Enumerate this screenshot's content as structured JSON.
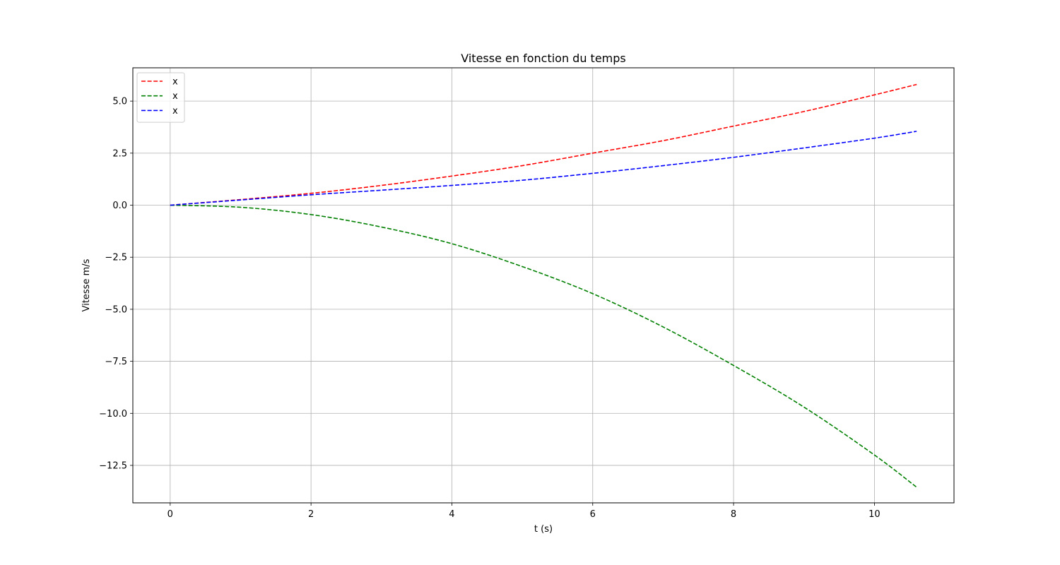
{
  "chart_data": {
    "type": "line",
    "title": "Vitesse en fonction du temps",
    "xlabel": "t (s)",
    "ylabel": "Vitesse m/s",
    "xlim": [
      -0.53,
      11.13
    ],
    "ylim": [
      -14.3,
      6.6
    ],
    "xticks": [
      0,
      2,
      4,
      6,
      8,
      10
    ],
    "yticks": [
      -12.5,
      -10.0,
      -7.5,
      -5.0,
      -2.5,
      0.0,
      2.5,
      5.0
    ],
    "ytick_labels": [
      "−12.5",
      "−10.0",
      "−7.5",
      "−5.0",
      "−2.5",
      "0.0",
      "2.5",
      "5.0"
    ],
    "grid": true,
    "legend_position": "top-left",
    "x": [
      0,
      1,
      2,
      3,
      4,
      5,
      6,
      7,
      8,
      9,
      10,
      10.6
    ],
    "series": [
      {
        "name": "x",
        "color": "#ff0000",
        "style": "dashed",
        "values": [
          0,
          0.27,
          0.57,
          0.95,
          1.4,
          1.9,
          2.5,
          3.1,
          3.8,
          4.5,
          5.3,
          5.8
        ]
      },
      {
        "name": "x",
        "color": "#008000",
        "style": "dashed",
        "values": [
          0,
          -0.1,
          -0.45,
          -1.05,
          -1.85,
          -2.95,
          -4.25,
          -5.85,
          -7.7,
          -9.7,
          -12.0,
          -13.55
        ]
      },
      {
        "name": "x",
        "color": "#0000ff",
        "style": "dashed",
        "values": [
          0,
          0.25,
          0.5,
          0.72,
          0.95,
          1.2,
          1.53,
          1.9,
          2.3,
          2.75,
          3.22,
          3.55
        ]
      }
    ]
  }
}
